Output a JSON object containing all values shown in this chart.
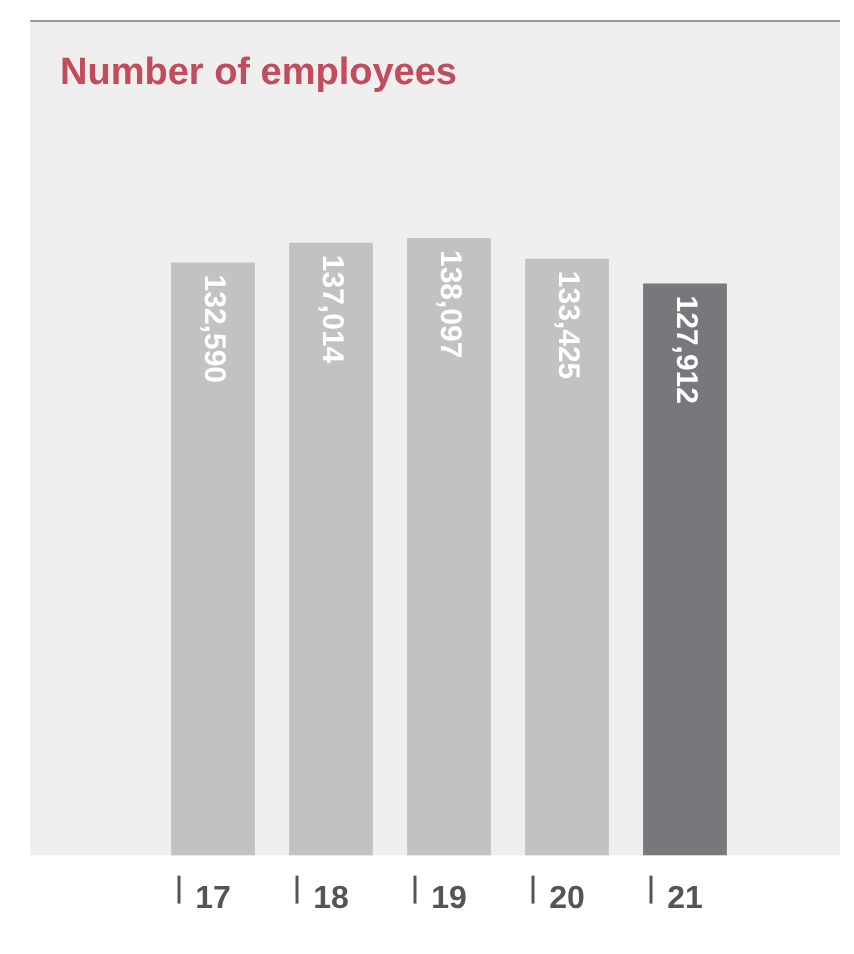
{
  "chart_data": {
    "type": "bar",
    "title": "Number of employees",
    "categories": [
      "17",
      "18",
      "19",
      "20",
      "21"
    ],
    "values": [
      132590,
      137014,
      138097,
      133425,
      127912
    ],
    "colors": [
      "#c1c2c4",
      "#c1c2c4",
      "#c1c2c4",
      "#c1c2c4",
      "#77787b"
    ],
    "value_labels": [
      "132,590",
      "137,014",
      "138,097",
      "133,425",
      "127,912"
    ],
    "grid": false,
    "legend": false
  }
}
